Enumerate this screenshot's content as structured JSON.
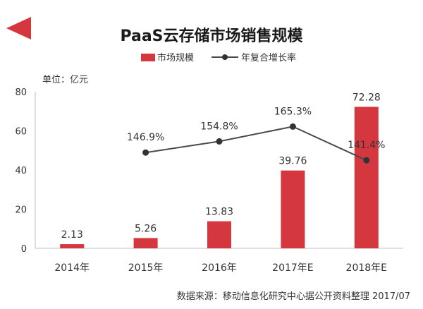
{
  "chart_data": {
    "type": "bar",
    "title": "PaaS云存储市场销售规模",
    "unit_label": "单位：亿元",
    "categories": [
      "2014年",
      "2015年",
      "2016年",
      "2017年E",
      "2018年E"
    ],
    "series": [
      {
        "name": "市场规模",
        "kind": "bar",
        "values": [
          2.13,
          5.26,
          13.83,
          39.76,
          72.28
        ],
        "labels": [
          "2.13",
          "5.26",
          "13.83",
          "39.76",
          "72.28"
        ]
      },
      {
        "name": "年复合增长率",
        "kind": "line",
        "values": [
          null,
          146.9,
          154.8,
          165.3,
          141.4
        ],
        "labels": [
          "",
          "146.9%",
          "154.8%",
          "165.3%",
          "141.4%"
        ]
      }
    ],
    "ylim": [
      0,
      80
    ],
    "yticks": [
      0,
      20,
      40,
      60,
      80
    ],
    "grid": false,
    "legend_position": "top"
  },
  "source_note": "数据来源：移动信息化研究中心据公开资料整理 2017/07",
  "colors": {
    "bar": "#D5373F",
    "line": "#4A4A4A",
    "marker": "#2E3338",
    "axis": "#BFBFBF",
    "text": "#333333",
    "accent_triangle": "#D5373F"
  }
}
